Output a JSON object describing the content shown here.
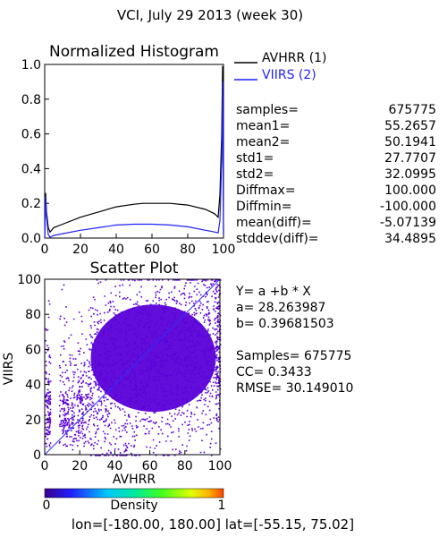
{
  "page_title": "VCI,  July 29 2013 (week 30)",
  "histogram": {
    "title": "Normalized Histogram",
    "legend": [
      {
        "label": "AVHRR (1)",
        "color": "#000000"
      },
      {
        "label": "VIIRS (2)",
        "color": "#1f1fff"
      }
    ],
    "stats": [
      {
        "label": "samples=",
        "value": "675775"
      },
      {
        "label": "mean1=",
        "value": "55.2657"
      },
      {
        "label": "mean2=",
        "value": "50.1941"
      },
      {
        "label": "std1=",
        "value": "27.7707"
      },
      {
        "label": "std2=",
        "value": "32.0995"
      },
      {
        "label": "Diffmax=",
        "value": "100.000"
      },
      {
        "label": "Diffmin=",
        "value": "-100.000"
      },
      {
        "label": "mean(diff)=",
        "value": "-5.07139"
      },
      {
        "label": "stddev(diff)=",
        "value": "34.4895"
      }
    ]
  },
  "scatter": {
    "title": "Scatter Plot",
    "regression": [
      {
        "text": "Y= a +b * X"
      },
      {
        "text": "a= 28.263987"
      },
      {
        "text": "b= 0.39681503"
      }
    ],
    "metrics": [
      {
        "text": "Samples= 675775"
      },
      {
        "text": "CC=  0.3433"
      },
      {
        "text": "RMSE= 30.149010"
      }
    ]
  },
  "colorbar": {
    "label": "Density",
    "min_label": "0",
    "max_label": "1"
  },
  "footer": "lon=[-180.00, 180.00] lat=[-55.15, 75.02]",
  "chart_data": [
    {
      "type": "line",
      "title": "Normalized Histogram",
      "xlim": [
        0,
        100
      ],
      "ylim": [
        0,
        1.0
      ],
      "x_ticks": [
        "0",
        "20",
        "40",
        "60",
        "80",
        "100"
      ],
      "y_ticks": [
        "0.0",
        "0.2",
        "0.4",
        "0.6",
        "0.8",
        "1.0"
      ],
      "series": [
        {
          "name": "AVHRR (1)",
          "color": "#000000",
          "x": [
            0,
            0.5,
            1,
            2,
            3,
            5,
            10,
            20,
            30,
            40,
            50,
            55,
            60,
            70,
            80,
            90,
            95,
            97,
            98,
            99,
            99.5,
            100
          ],
          "y": [
            0.0,
            0.26,
            0.15,
            0.06,
            0.035,
            0.06,
            0.08,
            0.12,
            0.15,
            0.18,
            0.195,
            0.2,
            0.2,
            0.2,
            0.19,
            0.165,
            0.14,
            0.12,
            0.25,
            0.6,
            0.99,
            0.02
          ]
        },
        {
          "name": "VIIRS (2)",
          "color": "#1f1fff",
          "x": [
            0,
            0.5,
            1,
            2,
            3,
            5,
            10,
            20,
            30,
            40,
            50,
            60,
            70,
            80,
            90,
            95,
            97,
            98,
            99,
            99.5,
            100
          ],
          "y": [
            0.0,
            0.24,
            0.12,
            0.02,
            0.005,
            0.015,
            0.025,
            0.045,
            0.06,
            0.075,
            0.08,
            0.08,
            0.075,
            0.065,
            0.045,
            0.035,
            0.03,
            0.1,
            0.45,
            0.9,
            0.02
          ]
        }
      ]
    },
    {
      "type": "scatter",
      "title": "Scatter Plot",
      "xlabel": "AVHRR",
      "ylabel": "VIIRS",
      "xlim": [
        0,
        100
      ],
      "ylim": [
        0,
        100
      ],
      "x_ticks": [
        "0",
        "20",
        "40",
        "60",
        "80",
        "100"
      ],
      "y_ticks": [
        "0",
        "20",
        "40",
        "60",
        "80",
        "100"
      ],
      "points_color": "#5a00d8",
      "regression": {
        "a": 28.263987,
        "b": 0.39681503
      },
      "identity_line": {
        "color": "#3030ff"
      },
      "samples": 675775
    }
  ]
}
